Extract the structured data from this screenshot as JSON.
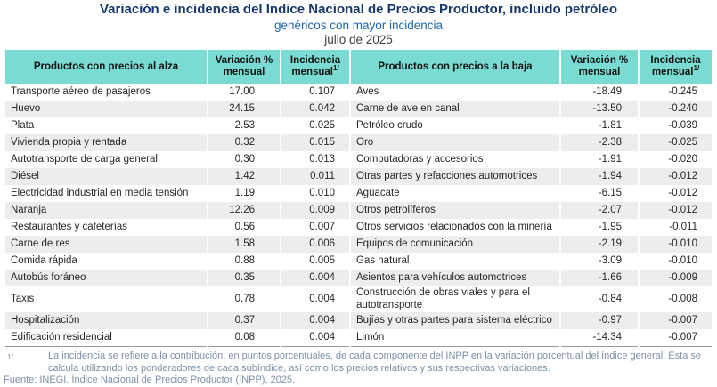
{
  "header": {
    "title": "Variación e incidencia del Indice Nacional de Precios Productor, incluido petróleo",
    "subtitle": "genéricos con mayor incidencia",
    "period": "julio de 2025"
  },
  "chart_data": {
    "type": "table",
    "title": "Variación e incidencia del Indice Nacional de Precios Productor, incluido petróleo",
    "subtitle": "genéricos con mayor incidencia",
    "period": "julio de 2025",
    "headers": {
      "alza_product": "Productos con precios al alza",
      "variacion": "Variación %\nmensual",
      "incidencia": "Incidencia\nmensual",
      "footnote_sup": "1/",
      "baja_product": "Productos con precios a la baja"
    },
    "rows": [
      [
        "Transporte aéreo de pasajeros",
        "17.00",
        "0.107",
        "Aves",
        "-18.49",
        "-0.245"
      ],
      [
        "Huevo",
        "24.15",
        "0.042",
        "Carne de ave en canal",
        "-13.50",
        "-0.240"
      ],
      [
        "Plata",
        "2.53",
        "0.025",
        "Petróleo crudo",
        "-1.81",
        "-0.039"
      ],
      [
        "Vivienda propia y rentada",
        "0.32",
        "0.015",
        "Oro",
        "-2.38",
        "-0.025"
      ],
      [
        "Autotransporte de carga general",
        "0.30",
        "0.013",
        "Computadoras y accesorios",
        "-1.91",
        "-0.020"
      ],
      [
        "Diésel",
        "1.42",
        "0.011",
        "Otras partes y refacciones automotrices",
        "-1.94",
        "-0.012"
      ],
      [
        "Electricidad industrial en media tensión",
        "1.19",
        "0.010",
        "Aguacate",
        "-6.15",
        "-0.012"
      ],
      [
        "Naranja",
        "12.26",
        "0.009",
        "Otros petrolíferos",
        "-2.07",
        "-0.012"
      ],
      [
        "Restaurantes y cafeterías",
        "0.56",
        "0.007",
        "Otros servicios relacionados con la minería",
        "-1.95",
        "-0.011"
      ],
      [
        "Carne de res",
        "1.58",
        "0.006",
        "Equipos de comunicación",
        "-2.19",
        "-0.010"
      ],
      [
        "Comida rápida",
        "0.88",
        "0.005",
        "Gas natural",
        "-3.09",
        "-0.010"
      ],
      [
        "Autobús foráneo",
        "0.35",
        "0.004",
        "Asientos para vehículos automotrices",
        "-1.66",
        "-0.009"
      ],
      [
        "Taxis",
        "0.78",
        "0.004",
        "Construcción de obras viales y para el autotransporte",
        "-0.84",
        "-0.008"
      ],
      [
        "Hospitalización",
        "0.37",
        "0.004",
        "Bujías y otras partes para sistema eléctrico",
        "-0.97",
        "-0.007"
      ],
      [
        "Edificación residencial",
        "0.08",
        "0.004",
        "Limón",
        "-14.34",
        "-0.007"
      ]
    ]
  },
  "footnote": {
    "marker": "1/",
    "text": "La incidencia se refiere a la contribución, en puntos porcentuales, de cada componente del INPP en la variación porcentual del índice general. Esta se calcula utilizando los ponderadores de cada subíndice, así como los precios relativos y sus respectivas variaciones.",
    "source": "Fuente: INEGI. Índice Nacional de Precios Productor (INPP), 2025."
  },
  "colors": {
    "header_fill": "#79DBD2",
    "row_stripe": "#EDEDED",
    "title": "#17386B",
    "subtitle": "#2065A5",
    "footnote": "#7D90A9"
  }
}
